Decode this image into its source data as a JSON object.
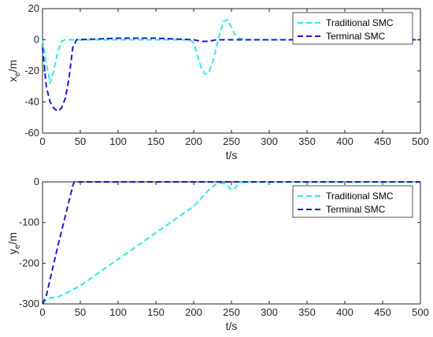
{
  "chart_data": [
    {
      "type": "line",
      "title": "",
      "xlabel": "t/s",
      "ylabel_main": "x",
      "ylabel_sub": "e",
      "ylabel_unit": "/m",
      "xlim": [
        0,
        500
      ],
      "ylim": [
        -60,
        20
      ],
      "xticks": [
        0,
        50,
        100,
        150,
        200,
        250,
        300,
        350,
        400,
        450,
        500
      ],
      "yticks": [
        -60,
        -40,
        -20,
        0,
        20
      ],
      "grid": false,
      "legend_position": "top-right",
      "series": [
        {
          "name": "Traditional SMC",
          "color": "#33e6e6",
          "x": [
            0,
            5,
            10,
            15,
            20,
            25,
            30,
            40,
            100,
            150,
            195,
            200,
            205,
            210,
            215,
            220,
            225,
            230,
            235,
            240,
            245,
            250,
            255,
            260,
            270,
            300,
            400,
            500
          ],
          "y": [
            0,
            -15,
            -28,
            -20,
            -8,
            -1,
            0,
            0,
            0,
            0,
            0,
            -2,
            -10,
            -18,
            -22,
            -21,
            -15,
            -5,
            5,
            12,
            13,
            8,
            3,
            1,
            0,
            0,
            0,
            0
          ]
        },
        {
          "name": "Terminal SMC",
          "color": "#1a1acc",
          "x": [
            0,
            5,
            10,
            15,
            20,
            25,
            30,
            35,
            40,
            45,
            100,
            150,
            200,
            210,
            220,
            230,
            250,
            300,
            400,
            500
          ],
          "y": [
            -5,
            -30,
            -40,
            -44,
            -46,
            -44,
            -38,
            -25,
            -5,
            0,
            1,
            1,
            0,
            -1,
            -1,
            0,
            0,
            0,
            0,
            0
          ]
        }
      ]
    },
    {
      "type": "line",
      "title": "",
      "xlabel": "t/s",
      "ylabel_main": "y",
      "ylabel_sub": "e",
      "ylabel_unit": "/m",
      "xlim": [
        0,
        500
      ],
      "ylim": [
        -300,
        0
      ],
      "xticks": [
        0,
        50,
        100,
        150,
        200,
        250,
        300,
        350,
        400,
        450,
        500
      ],
      "yticks": [
        -300,
        -200,
        -100,
        0
      ],
      "grid": false,
      "legend_position": "top-right",
      "series": [
        {
          "name": "Traditional SMC",
          "color": "#33e6e6",
          "x": [
            0,
            5,
            10,
            20,
            30,
            50,
            100,
            150,
            200,
            210,
            220,
            230,
            240,
            245,
            250,
            255,
            260,
            270,
            300,
            400,
            500
          ],
          "y": [
            -300,
            -290,
            -285,
            -283,
            -275,
            -255,
            -190,
            -125,
            -60,
            -40,
            -20,
            -5,
            -3,
            -10,
            -20,
            -15,
            -2,
            0,
            0,
            0,
            0
          ]
        },
        {
          "name": "Terminal SMC",
          "color": "#1a1acc",
          "x": [
            0,
            5,
            10,
            20,
            30,
            40,
            42,
            50,
            100,
            200,
            300,
            400,
            500
          ],
          "y": [
            -300,
            -280,
            -240,
            -160,
            -85,
            -10,
            0,
            0,
            0,
            0,
            0,
            0,
            0
          ]
        }
      ]
    }
  ]
}
